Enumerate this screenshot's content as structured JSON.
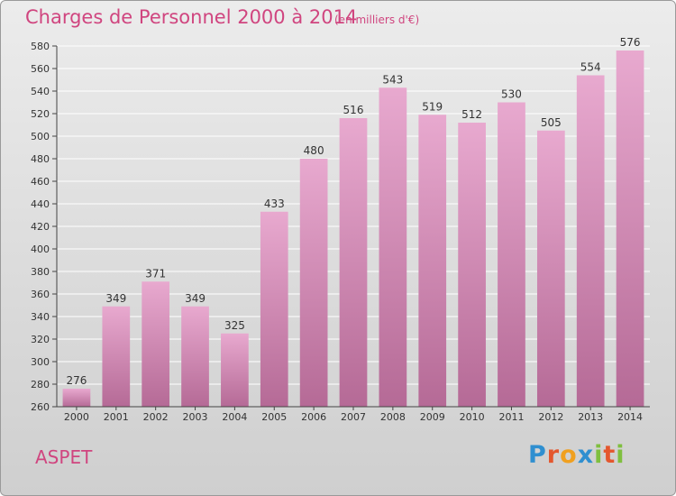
{
  "header": {
    "title": "Charges de Personnel 2000 à 2014",
    "subtitle": "(en milliers d'€)"
  },
  "footer": {
    "commune": "ASPET",
    "logo": [
      "P",
      "r",
      "o",
      "x",
      "i",
      "t",
      "i"
    ]
  },
  "colors": {
    "title": "#d0457f",
    "bar_top": "#e8a9cf",
    "bar_bottom": "#b56a96",
    "grid": "#ffffff",
    "axis": "#000000",
    "logo": [
      "#2f8fd0",
      "#e4572e",
      "#f0a020",
      "#2f8fd0",
      "#7fbf3f",
      "#e4572e",
      "#7fbf3f"
    ]
  },
  "chart_data": {
    "type": "bar",
    "title": "Charges de Personnel 2000 à 2014",
    "subtitle": "(en milliers d'€)",
    "xlabel": "",
    "ylabel": "",
    "categories": [
      "2000",
      "2001",
      "2002",
      "2003",
      "2004",
      "2005",
      "2006",
      "2007",
      "2008",
      "2009",
      "2010",
      "2011",
      "2012",
      "2013",
      "2014"
    ],
    "values": [
      276,
      349,
      371,
      349,
      325,
      433,
      480,
      516,
      543,
      519,
      512,
      530,
      505,
      554,
      576
    ],
    "ylim": [
      260,
      580
    ],
    "yticks": [
      260,
      280,
      300,
      320,
      340,
      360,
      380,
      400,
      420,
      440,
      460,
      480,
      500,
      520,
      540,
      560,
      580
    ],
    "grid": true,
    "legend": "none"
  }
}
